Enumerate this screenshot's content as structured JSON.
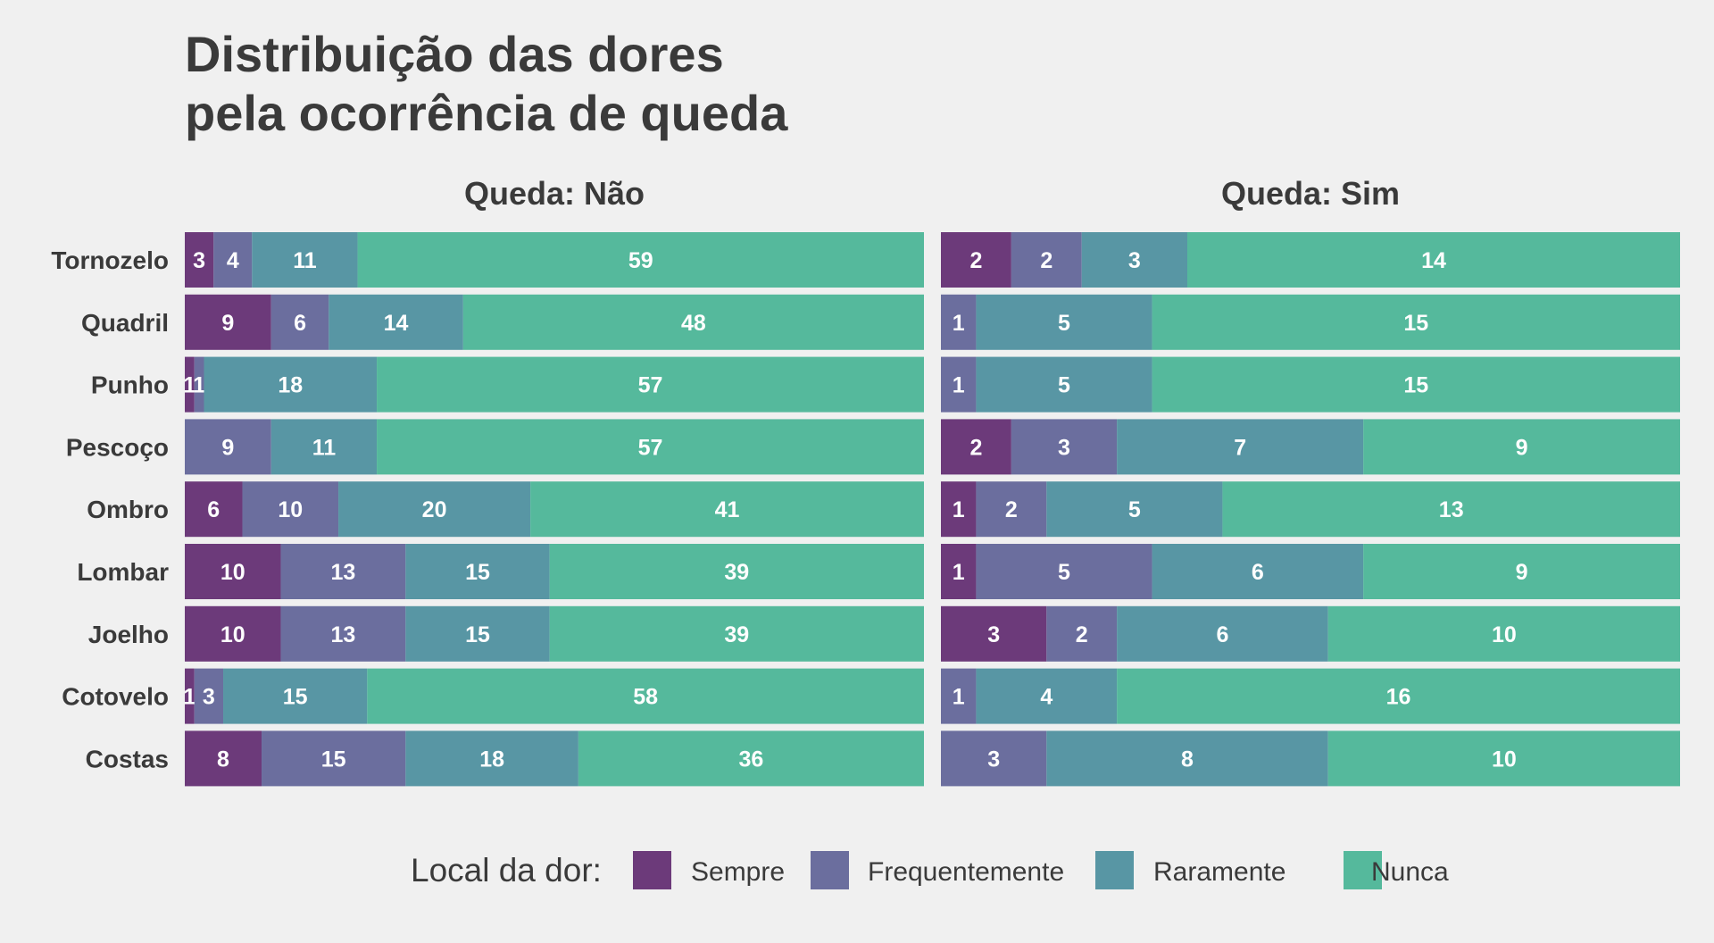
{
  "chart_data": {
    "type": "bar",
    "orientation": "horizontal",
    "stacked": "percent",
    "title_lines": [
      "Distribuição das dores",
      "pela ocorrência de queda"
    ],
    "categories": [
      "Tornozelo",
      "Quadril",
      "Punho",
      "Pescoço",
      "Ombro",
      "Lombar",
      "Joelho",
      "Cotovelo",
      "Costas"
    ],
    "legend": {
      "title": "Local da dor:",
      "position": "bottom",
      "entries": [
        "Sempre",
        "Frequentemente",
        "Raramente",
        "Nunca"
      ],
      "colors": [
        "#6c3a7a",
        "#6b6e9e",
        "#5896a4",
        "#55b99c"
      ]
    },
    "panels": [
      {
        "title": "Queda: Não",
        "series": [
          {
            "name": "Sempre",
            "values": [
              3,
              9,
              1,
              0,
              6,
              10,
              10,
              1,
              8
            ]
          },
          {
            "name": "Frequentemente",
            "values": [
              4,
              6,
              1,
              9,
              10,
              13,
              13,
              3,
              15
            ]
          },
          {
            "name": "Raramente",
            "values": [
              11,
              14,
              18,
              11,
              20,
              15,
              15,
              15,
              18
            ]
          },
          {
            "name": "Nunca",
            "values": [
              59,
              48,
              57,
              57,
              41,
              39,
              39,
              58,
              36
            ]
          }
        ]
      },
      {
        "title": "Queda: Sim",
        "series": [
          {
            "name": "Sempre",
            "values": [
              2,
              0,
              0,
              2,
              1,
              1,
              3,
              0,
              0
            ]
          },
          {
            "name": "Frequentemente",
            "values": [
              2,
              1,
              1,
              3,
              2,
              5,
              2,
              1,
              3
            ]
          },
          {
            "name": "Raramente",
            "values": [
              3,
              5,
              5,
              7,
              5,
              6,
              6,
              4,
              8
            ]
          },
          {
            "name": "Nunca",
            "values": [
              14,
              15,
              15,
              9,
              13,
              9,
              10,
              16,
              10
            ]
          }
        ]
      }
    ]
  }
}
